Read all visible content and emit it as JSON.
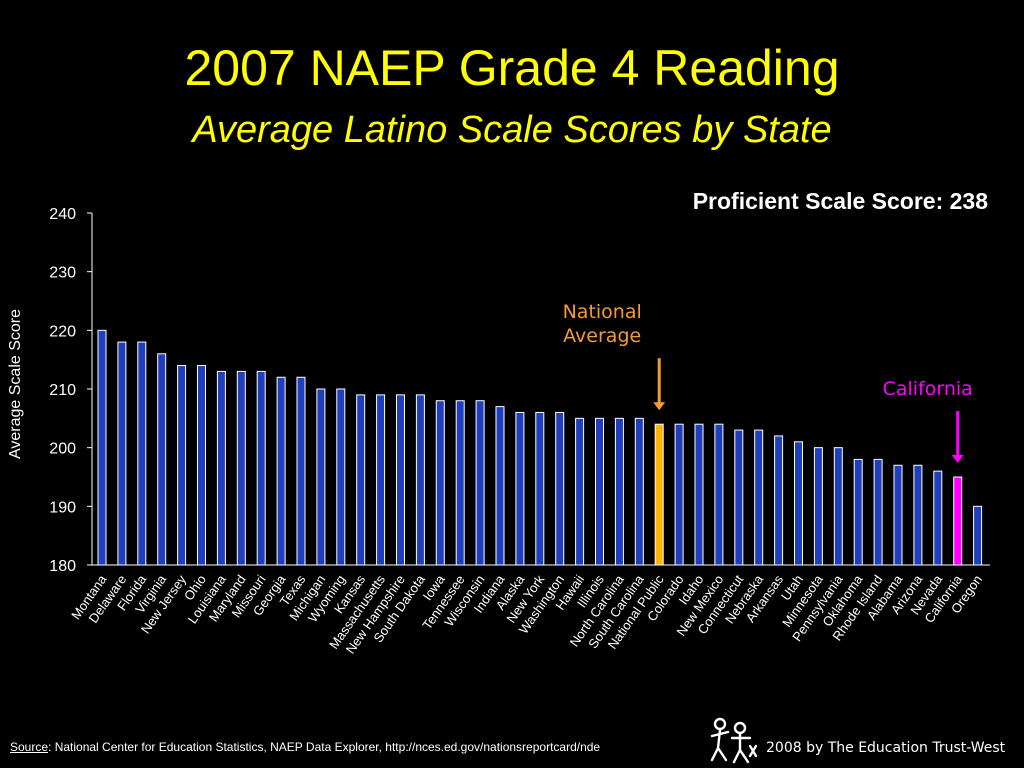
{
  "colors": {
    "background": "#000000",
    "title": "#ffff00",
    "bar": "#1f3fbf",
    "bar_border": "#ffffff",
    "national_bar": "#ffb400",
    "national_label": "#f39c34",
    "california_bar": "#ff00ff",
    "california_label": "#ff00ff",
    "axis": "#ffffff"
  },
  "header": {
    "title": "2007 NAEP Grade 4 Reading",
    "subtitle": "Average Latino Scale Scores by State"
  },
  "note": "Proficient Scale Score: 238",
  "footer": {
    "source_label": "Source",
    "source_text": ":  National Center for Education Statistics, NAEP Data Explorer, http://nces.ed.gov/nationsreportcard/nde",
    "credit": "2008 by The Education Trust-West",
    "logo_icon": "ed-trust-logo-icon"
  },
  "chart_data": {
    "type": "bar",
    "title": "",
    "xlabel": "",
    "ylabel": "Average Scale Score",
    "ylim": [
      180,
      240
    ],
    "yticks": [
      180,
      190,
      200,
      210,
      220,
      230,
      240
    ],
    "grid": false,
    "categories": [
      "Montana",
      "Delaware",
      "Florida",
      "Virginia",
      "New Jersey",
      "Ohio",
      "Louisiana",
      "Maryland",
      "Missouri",
      "Georgia",
      "Texas",
      "Michigan",
      "Wyoming",
      "Kansas",
      "Massachusetts",
      "New Hampshire",
      "South Dakota",
      "Iowa",
      "Tennessee",
      "Wisconsin",
      "Indiana",
      "Alaska",
      "New York",
      "Washington",
      "Hawaii",
      "Illinois",
      "North Carolina",
      "South Carolina",
      "National Public",
      "Colorado",
      "Idaho",
      "New Mexico",
      "Connecticut",
      "Nebraska",
      "Arkansas",
      "Utah",
      "Minnesota",
      "Pennsylvania",
      "Oklahoma",
      "Rhode Island",
      "Alabama",
      "Arizona",
      "Nevada",
      "California",
      "Oregon"
    ],
    "values": [
      220,
      218,
      218,
      216,
      214,
      214,
      213,
      213,
      213,
      212,
      212,
      210,
      210,
      209,
      209,
      209,
      209,
      208,
      208,
      208,
      207,
      206,
      206,
      206,
      205,
      205,
      205,
      205,
      204,
      204,
      204,
      204,
      203,
      203,
      202,
      201,
      200,
      200,
      198,
      198,
      197,
      197,
      196,
      195,
      190
    ],
    "highlights": [
      {
        "category": "National Public",
        "label_lines": [
          "National",
          "Average"
        ],
        "color": "#ffb400",
        "label_color": "#f39c34"
      },
      {
        "category": "California",
        "label_lines": [
          "California"
        ],
        "color": "#ff00ff",
        "label_color": "#ff00ff"
      }
    ]
  }
}
